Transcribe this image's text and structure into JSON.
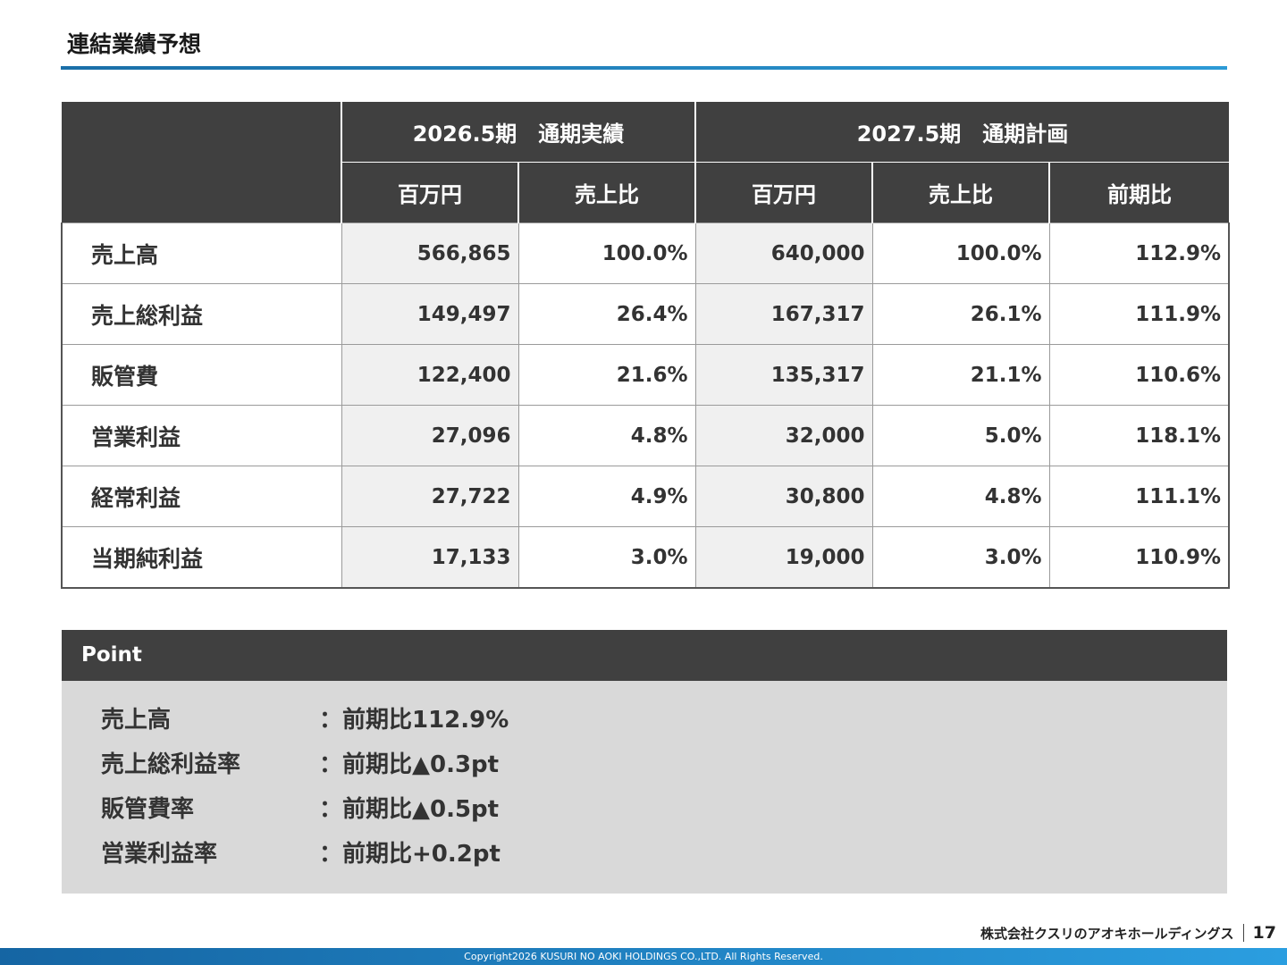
{
  "title": "連結業績予想",
  "table": {
    "group_2026": "2026.5期　通期実績",
    "group_2027": "2027.5期　通期計画",
    "col_amount_2026": "百万円",
    "col_ratio_2026": "売上比",
    "col_amount_2027": "百万円",
    "col_ratio_2027": "売上比",
    "col_yoy": "前期比",
    "rows": [
      {
        "label": "売上高",
        "v2026": "566,865",
        "r2026": "100.0%",
        "v2027": "640,000",
        "r2027": "100.0%",
        "yoy": "112.9%"
      },
      {
        "label": "売上総利益",
        "v2026": "149,497",
        "r2026": "26.4%",
        "v2027": "167,317",
        "r2027": "26.1%",
        "yoy": "111.9%"
      },
      {
        "label": "販管費",
        "v2026": "122,400",
        "r2026": "21.6%",
        "v2027": "135,317",
        "r2027": "21.1%",
        "yoy": "110.6%"
      },
      {
        "label": "営業利益",
        "v2026": "27,096",
        "r2026": "4.8%",
        "v2027": "32,000",
        "r2027": "5.0%",
        "yoy": "118.1%"
      },
      {
        "label": "経常利益",
        "v2026": "27,722",
        "r2026": "4.9%",
        "v2027": "30,800",
        "r2027": "4.8%",
        "yoy": "111.1%"
      },
      {
        "label": "当期純利益",
        "v2026": "17,133",
        "r2026": "3.0%",
        "v2027": "19,000",
        "r2027": "3.0%",
        "yoy": "110.9%"
      }
    ]
  },
  "point": {
    "heading": "Point",
    "items": [
      {
        "label": "売上高",
        "value": "：前期比112.9%"
      },
      {
        "label": "売上総利益率",
        "value": "：前期比▲0.3pt"
      },
      {
        "label": "販管費率",
        "value": "：前期比▲0.5pt"
      },
      {
        "label": "営業利益率",
        "value": "：前期比+0.2pt"
      }
    ]
  },
  "brand": "株式会社クスリのアオキホールディングス",
  "page_number": "17",
  "footer": "Copyright2026 KUSURI NO AOKI HOLDINGS CO.,LTD. All Rights Reserved.",
  "colors": {
    "header_dark": "#404040",
    "accent_blue": "#1a6fa8",
    "point_bg": "#d9d9d9",
    "cell_shade": "#f0f0f0"
  }
}
